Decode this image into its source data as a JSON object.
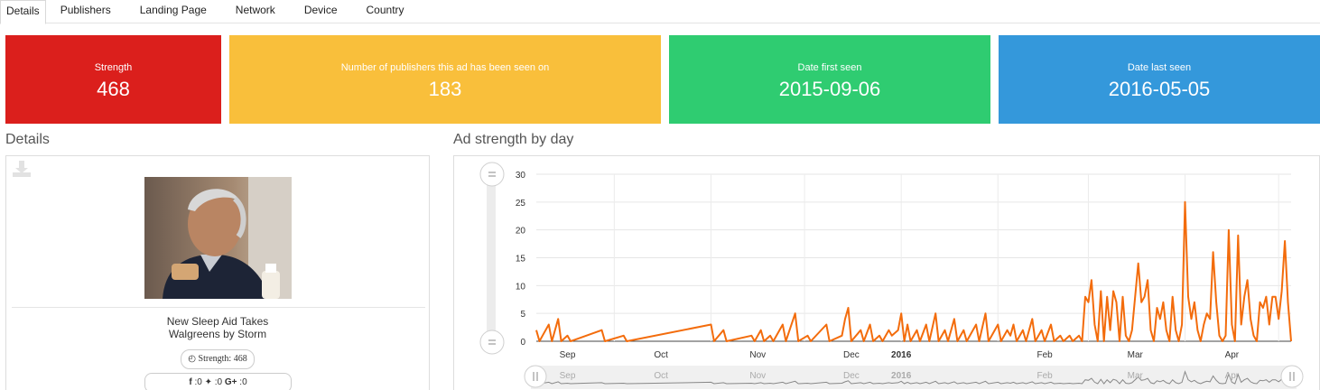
{
  "tabs": [
    {
      "label": "Details",
      "active": true
    },
    {
      "label": "Publishers",
      "active": false
    },
    {
      "label": "Landing Page",
      "active": false
    },
    {
      "label": "Network",
      "active": false
    },
    {
      "label": "Device",
      "active": false
    },
    {
      "label": "Country",
      "active": false
    }
  ],
  "cards": {
    "strength": {
      "label": "Strength",
      "value": "468",
      "color": "#db1f1c"
    },
    "publishers": {
      "label": "Number of publishers this ad has been seen on",
      "value": "183",
      "color": "#f9bf3b"
    },
    "first_seen": {
      "label": "Date first seen",
      "value": "2015-09-06",
      "color": "#2fcc71"
    },
    "last_seen": {
      "label": "Date last seen",
      "value": "2016-05-05",
      "color": "#3498db"
    }
  },
  "details": {
    "title": "Details",
    "download_icon": "download-icon",
    "ad_title_line1": "New Sleep Aid Takes",
    "ad_title_line2": "Walgreens by Storm",
    "strength_pill": "Strength: 468",
    "social": {
      "facebook": "0",
      "twitter": "0",
      "googleplus": "0"
    }
  },
  "chart_section": {
    "title": "Ad strength by day"
  },
  "chart_data": {
    "type": "line",
    "title": "",
    "xlabel": "",
    "ylabel": "",
    "series_color": "#f36c0c",
    "ylim": [
      0,
      30
    ],
    "y_ticks": [
      0,
      5,
      10,
      15,
      20,
      25,
      30
    ],
    "x_ticks": [
      "Sep",
      "Oct",
      "Nov",
      "Dec",
      "2016",
      "Feb",
      "Mar",
      "Apr"
    ],
    "navigator_labels": [
      "Sep",
      "Oct",
      "Nov",
      "Dec",
      "2016",
      "Feb",
      "Mar",
      "Apr"
    ],
    "x_range": [
      "2015-09-06",
      "2016-05-05"
    ],
    "grid": true,
    "points": [
      [
        "2015-09-06",
        2
      ],
      [
        "2015-09-07",
        0
      ],
      [
        "2015-09-08",
        1
      ],
      [
        "2015-09-10",
        3
      ],
      [
        "2015-09-11",
        0
      ],
      [
        "2015-09-13",
        4
      ],
      [
        "2015-09-14",
        0
      ],
      [
        "2015-09-16",
        1
      ],
      [
        "2015-09-17",
        0
      ],
      [
        "2015-09-27",
        2
      ],
      [
        "2015-09-28",
        0
      ],
      [
        "2015-10-04",
        1
      ],
      [
        "2015-10-05",
        0
      ],
      [
        "2015-11-01",
        3
      ],
      [
        "2015-11-02",
        0
      ],
      [
        "2015-11-05",
        2
      ],
      [
        "2015-11-06",
        0
      ],
      [
        "2015-11-14",
        1
      ],
      [
        "2015-11-15",
        0
      ],
      [
        "2015-11-17",
        2
      ],
      [
        "2015-11-18",
        0
      ],
      [
        "2015-11-20",
        1
      ],
      [
        "2015-11-21",
        0
      ],
      [
        "2015-11-24",
        3
      ],
      [
        "2015-11-25",
        0
      ],
      [
        "2015-11-28",
        5
      ],
      [
        "2015-11-29",
        0
      ],
      [
        "2015-12-02",
        1
      ],
      [
        "2015-12-03",
        0
      ],
      [
        "2015-12-08",
        3
      ],
      [
        "2015-12-09",
        0
      ],
      [
        "2015-12-13",
        1
      ],
      [
        "2015-12-14",
        4
      ],
      [
        "2015-12-15",
        6
      ],
      [
        "2015-12-16",
        0
      ],
      [
        "2015-12-19",
        2
      ],
      [
        "2015-12-20",
        0
      ],
      [
        "2015-12-22",
        3
      ],
      [
        "2015-12-23",
        0
      ],
      [
        "2015-12-25",
        1
      ],
      [
        "2015-12-26",
        0
      ],
      [
        "2015-12-28",
        2
      ],
      [
        "2015-12-29",
        1
      ],
      [
        "2015-12-31",
        2
      ],
      [
        "2016-01-01",
        5
      ],
      [
        "2016-01-02",
        0
      ],
      [
        "2016-01-03",
        3
      ],
      [
        "2016-01-04",
        0
      ],
      [
        "2016-01-06",
        2
      ],
      [
        "2016-01-07",
        0
      ],
      [
        "2016-01-09",
        3
      ],
      [
        "2016-01-10",
        0
      ],
      [
        "2016-01-12",
        5
      ],
      [
        "2016-01-13",
        0
      ],
      [
        "2016-01-15",
        2
      ],
      [
        "2016-01-16",
        0
      ],
      [
        "2016-01-18",
        4
      ],
      [
        "2016-01-19",
        0
      ],
      [
        "2016-01-21",
        2
      ],
      [
        "2016-01-22",
        0
      ],
      [
        "2016-01-25",
        3
      ],
      [
        "2016-01-26",
        0
      ],
      [
        "2016-01-28",
        5
      ],
      [
        "2016-01-29",
        0
      ],
      [
        "2016-02-01",
        3
      ],
      [
        "2016-02-02",
        0
      ],
      [
        "2016-02-04",
        2
      ],
      [
        "2016-02-05",
        1
      ],
      [
        "2016-02-06",
        3
      ],
      [
        "2016-02-07",
        0
      ],
      [
        "2016-02-09",
        2
      ],
      [
        "2016-02-10",
        0
      ],
      [
        "2016-02-12",
        4
      ],
      [
        "2016-02-13",
        0
      ],
      [
        "2016-02-15",
        2
      ],
      [
        "2016-02-16",
        0
      ],
      [
        "2016-02-18",
        3
      ],
      [
        "2016-02-19",
        0
      ],
      [
        "2016-02-21",
        1
      ],
      [
        "2016-02-22",
        0
      ],
      [
        "2016-02-24",
        1
      ],
      [
        "2016-02-25",
        0
      ],
      [
        "2016-02-27",
        1
      ],
      [
        "2016-02-28",
        0
      ],
      [
        "2016-02-29",
        8
      ],
      [
        "2016-03-01",
        7
      ],
      [
        "2016-03-02",
        11
      ],
      [
        "2016-03-03",
        3
      ],
      [
        "2016-03-04",
        0
      ],
      [
        "2016-03-05",
        9
      ],
      [
        "2016-03-06",
        0
      ],
      [
        "2016-03-07",
        8
      ],
      [
        "2016-03-08",
        2
      ],
      [
        "2016-03-09",
        9
      ],
      [
        "2016-03-10",
        7
      ],
      [
        "2016-03-11",
        0
      ],
      [
        "2016-03-12",
        8
      ],
      [
        "2016-03-13",
        1
      ],
      [
        "2016-03-14",
        0
      ],
      [
        "2016-03-15",
        2
      ],
      [
        "2016-03-17",
        14
      ],
      [
        "2016-03-18",
        7
      ],
      [
        "2016-03-19",
        8
      ],
      [
        "2016-03-20",
        11
      ],
      [
        "2016-03-21",
        2
      ],
      [
        "2016-03-22",
        0
      ],
      [
        "2016-03-23",
        6
      ],
      [
        "2016-03-24",
        4
      ],
      [
        "2016-03-25",
        7
      ],
      [
        "2016-03-26",
        2
      ],
      [
        "2016-03-27",
        0
      ],
      [
        "2016-03-28",
        8
      ],
      [
        "2016-03-29",
        2
      ],
      [
        "2016-03-30",
        0
      ],
      [
        "2016-03-31",
        3
      ],
      [
        "2016-04-01",
        25
      ],
      [
        "2016-04-02",
        8
      ],
      [
        "2016-04-03",
        4
      ],
      [
        "2016-04-04",
        7
      ],
      [
        "2016-04-05",
        2
      ],
      [
        "2016-04-06",
        0
      ],
      [
        "2016-04-07",
        3
      ],
      [
        "2016-04-08",
        5
      ],
      [
        "2016-04-09",
        4
      ],
      [
        "2016-04-10",
        16
      ],
      [
        "2016-04-11",
        7
      ],
      [
        "2016-04-12",
        1
      ],
      [
        "2016-04-13",
        0
      ],
      [
        "2016-04-14",
        1
      ],
      [
        "2016-04-15",
        20
      ],
      [
        "2016-04-16",
        3
      ],
      [
        "2016-04-17",
        0
      ],
      [
        "2016-04-18",
        19
      ],
      [
        "2016-04-19",
        3
      ],
      [
        "2016-04-20",
        8
      ],
      [
        "2016-04-21",
        11
      ],
      [
        "2016-04-22",
        4
      ],
      [
        "2016-04-23",
        1
      ],
      [
        "2016-04-24",
        0
      ],
      [
        "2016-04-25",
        7
      ],
      [
        "2016-04-26",
        6
      ],
      [
        "2016-04-27",
        8
      ],
      [
        "2016-04-28",
        3
      ],
      [
        "2016-04-29",
        8
      ],
      [
        "2016-04-30",
        8
      ],
      [
        "2016-05-01",
        4
      ],
      [
        "2016-05-02",
        9
      ],
      [
        "2016-05-03",
        18
      ],
      [
        "2016-05-04",
        7
      ],
      [
        "2016-05-05",
        0
      ]
    ]
  }
}
